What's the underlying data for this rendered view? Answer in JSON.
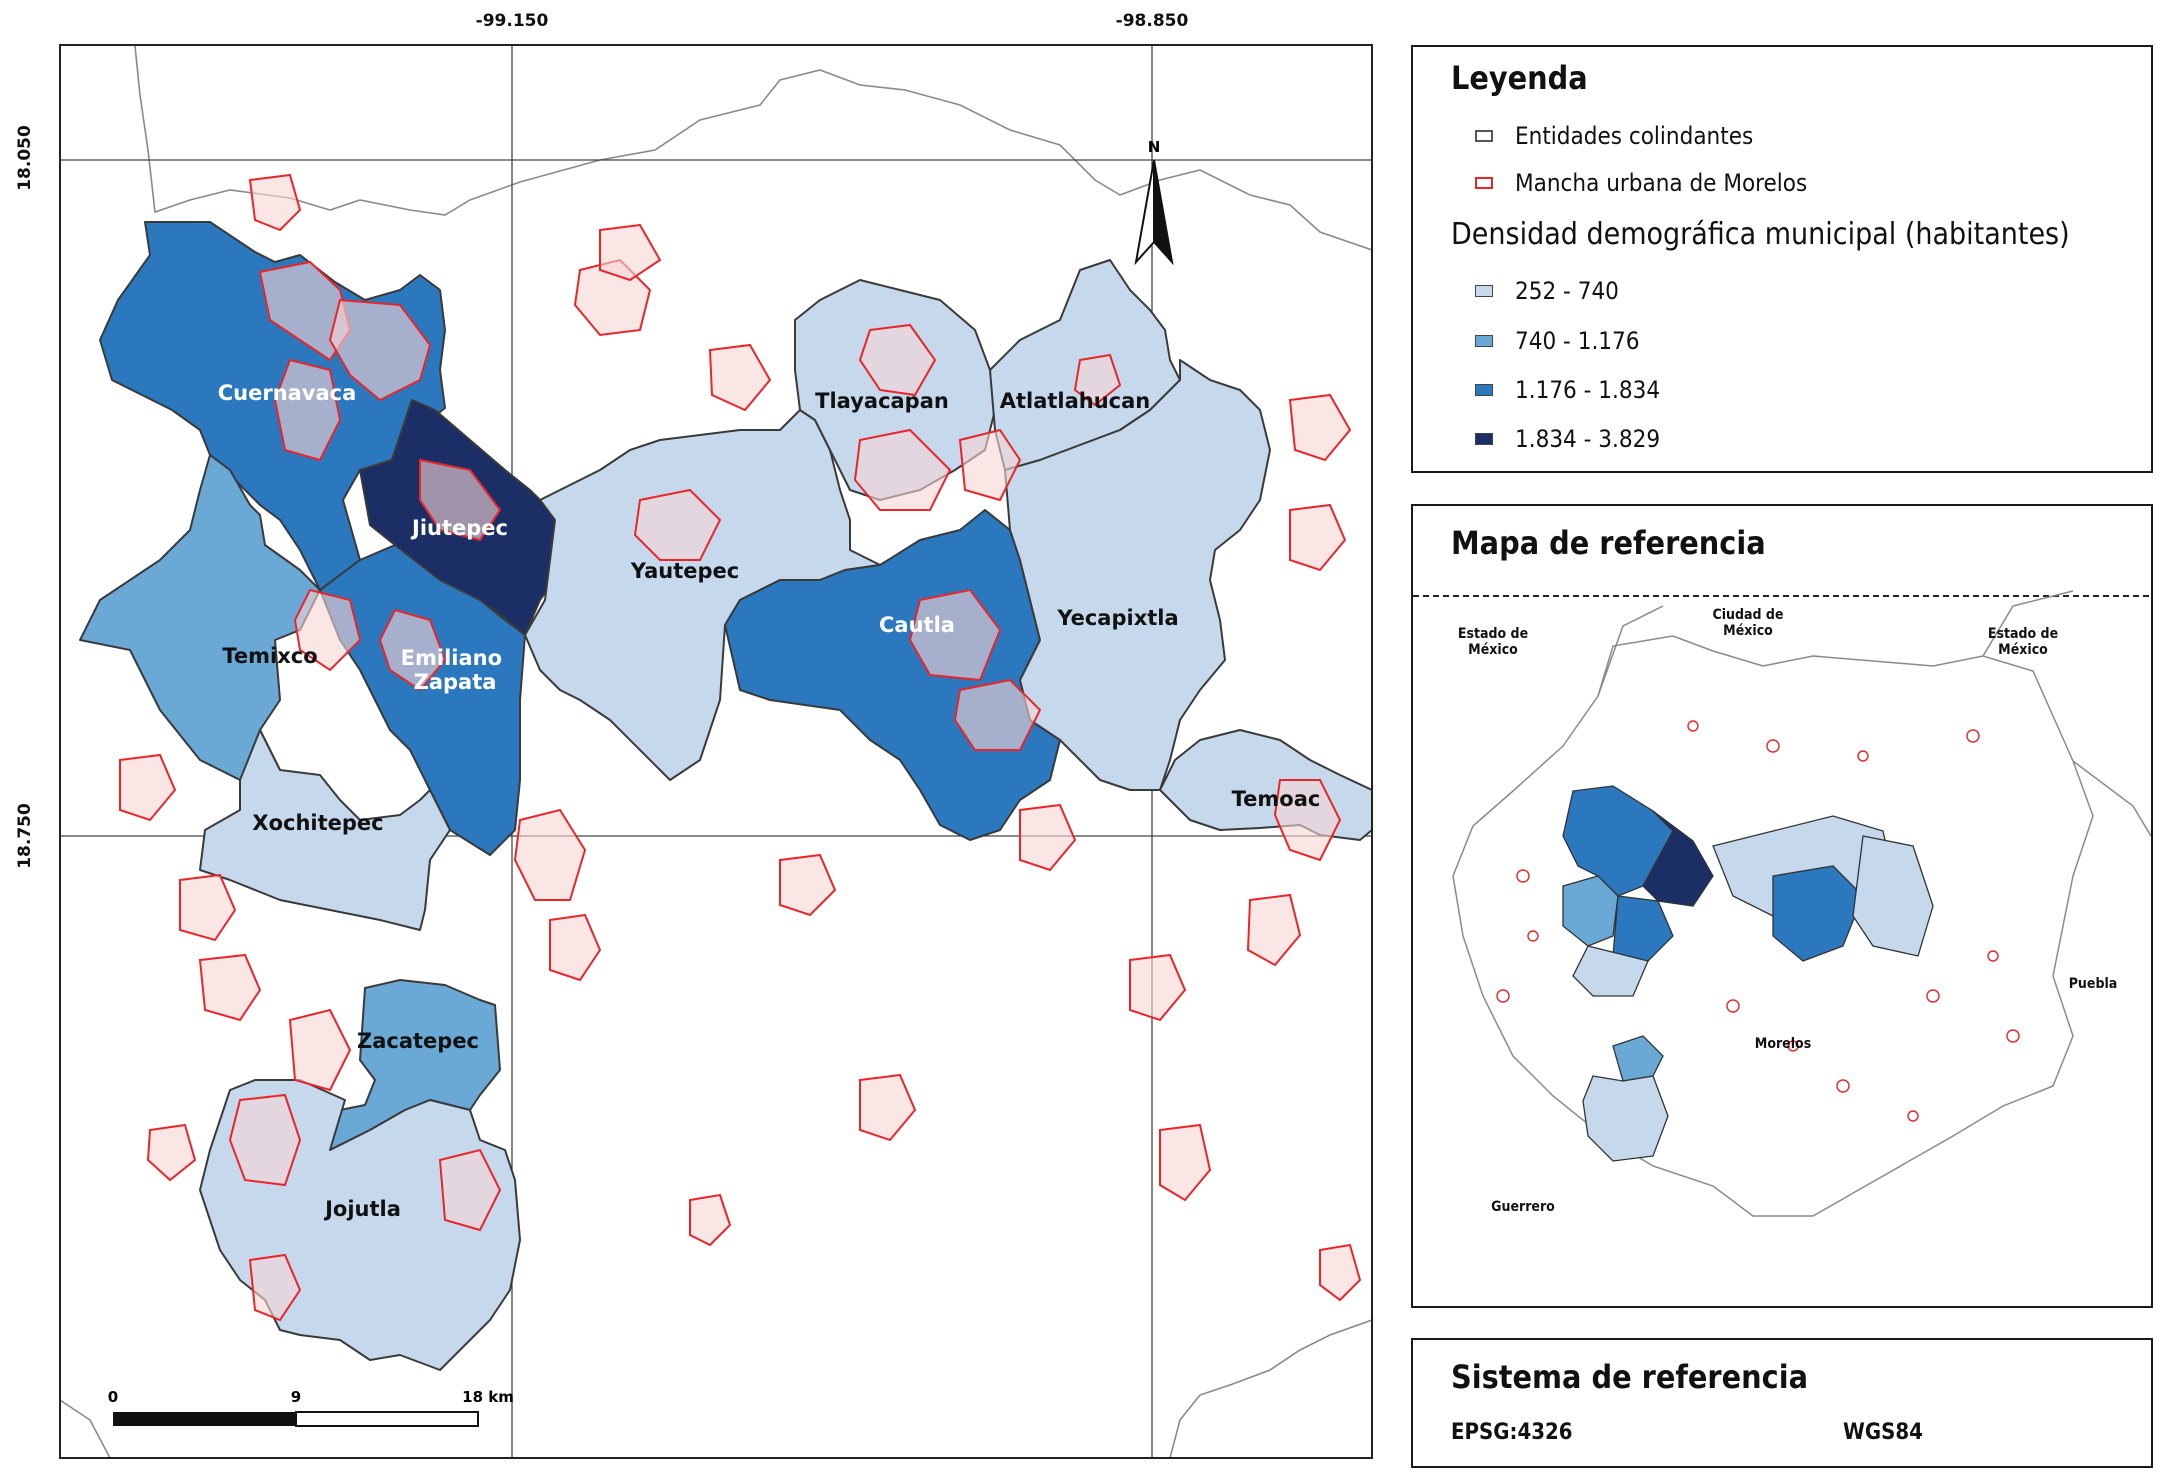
{
  "map": {
    "coords_top": [
      "-99.150",
      "-98.850"
    ],
    "coords_left": [
      "18.050",
      "18.750"
    ],
    "north": "N",
    "scale": {
      "zero": "0",
      "mid": "9",
      "end": "18 km"
    },
    "municipalities": [
      {
        "name": "Cuernavaca",
        "density_class": 3
      },
      {
        "name": "Jiutepec",
        "density_class": 4
      },
      {
        "name": "Temixco",
        "density_class": 2
      },
      {
        "name": "Emiliano Zapata",
        "density_class": 3
      },
      {
        "name": "Xochitepec",
        "density_class": 1
      },
      {
        "name": "Yautepec",
        "density_class": 1
      },
      {
        "name": "Tlayacapan",
        "density_class": 1
      },
      {
        "name": "Atlatlahucan",
        "density_class": 1
      },
      {
        "name": "Cautla",
        "density_class": 3
      },
      {
        "name": "Yecapixtla",
        "density_class": 1
      },
      {
        "name": "Temoac",
        "density_class": 1
      },
      {
        "name": "Zacatepec",
        "density_class": 2
      },
      {
        "name": "Jojutla",
        "density_class": 1
      }
    ]
  },
  "legend": {
    "title": "Leyenda",
    "items": [
      {
        "label": "Entidades colindantes",
        "color": "#ffffff",
        "stroke": "#555555"
      },
      {
        "label": "Mancha urbana de Morelos",
        "color": "#ffffff",
        "stroke": "#e8262a"
      }
    ],
    "density_title": "Densidad demográfica municipal (habitantes)",
    "classes": [
      {
        "label": "252 - 740",
        "color": "#c6d8ec"
      },
      {
        "label": "740 - 1.176",
        "color": "#6aa9d6"
      },
      {
        "label": "1.176 - 1.834",
        "color": "#2b78be"
      },
      {
        "label": "1.834 - 3.829",
        "color": "#1c2e66"
      }
    ]
  },
  "reference_map": {
    "title": "Mapa de referencia",
    "labels": [
      "Estado de México",
      "Ciudad de México",
      "Estado de México",
      "Puebla",
      "Morelos",
      "Guerrero"
    ]
  },
  "reference_system": {
    "title": "Sistema de referencia",
    "code": "EPSG:4326",
    "datum": "WGS84"
  }
}
